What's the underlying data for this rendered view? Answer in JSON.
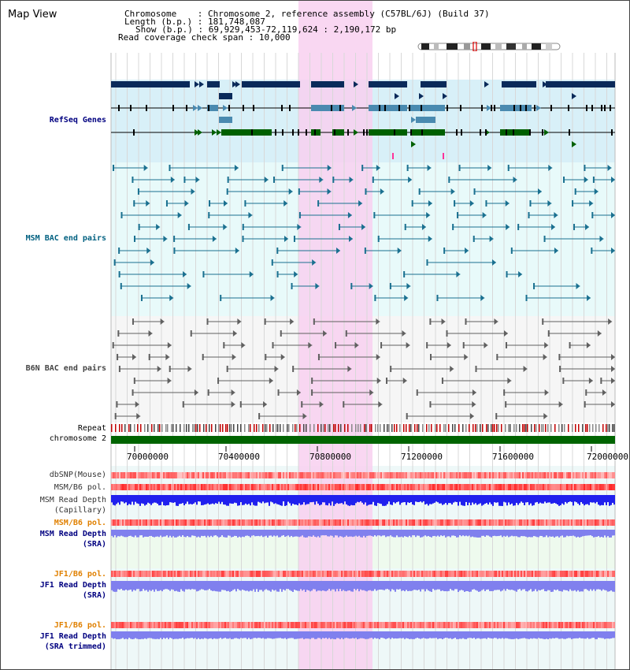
{
  "title": "Map View",
  "header": {
    "chromosome_key": "Chromosome",
    "chromosome_val": "Chromosome 2, reference assembly (C57BL/6J) (Build 37)",
    "length_key": "Length (b.p.)",
    "length_val": "181,748,087",
    "show_key": "Show (b.p.)",
    "show_val": "69,929,453-72,119,624 : 2,190,172 bp",
    "coverage_key": "Read coverage check span",
    "coverage_val": "10,000"
  },
  "tracks": {
    "refseq": "RefSeq Genes",
    "msm_bac": "MSM BAC end pairs",
    "b6n_bac": "B6N BAC end pairs",
    "repeat": "Repeat",
    "chromosome": "chromosome 2",
    "dbsnp": "dbSNP(Mouse)",
    "msm_b6_pol_1": "MSM/B6 pol.",
    "msm_read_depth_cap_1": "MSM Read Depth",
    "msm_read_depth_cap_2": "(Capillary)",
    "msm_b6_pol_2": "MSM/B6 pol.",
    "msm_read_depth_sra_1": "MSM Read Depth",
    "msm_read_depth_sra_2": "(SRA)",
    "jf1_b6_pol_1": "JF1/B6 pol.",
    "jf1_read_depth_sra_1": "JF1 Read Depth",
    "jf1_read_depth_sra_2": "(SRA)",
    "jf1_b6_pol_2": "JF1/B6 pol.",
    "jf1_read_depth_trim_1": "JF1 Read Depth",
    "jf1_read_depth_trim_2": "(SRA trimmed)"
  },
  "axis": {
    "ticks": [
      "70000000",
      "70400000",
      "70800000",
      "71200000",
      "71600000",
      "72000000"
    ]
  },
  "highlight_region": {
    "start": 70800000,
    "end": 71000000
  },
  "colors": {
    "refseq_label": "#000080",
    "msm_label": "#006080",
    "b6n_label": "#444444",
    "orange_label": "#e08000",
    "blue_label": "#000080",
    "highlight": "#f8d0f0",
    "refseq_bg": "#d8f0f8",
    "msm_bg": "#e8fafa",
    "gene_navy": "#0a2a5a",
    "gene_steel": "#4a8ab0",
    "gene_green": "#006000",
    "chromosome_bar": "#006400",
    "depth_capillary": "#2020ee",
    "depth_sra": "#8080ee"
  }
}
